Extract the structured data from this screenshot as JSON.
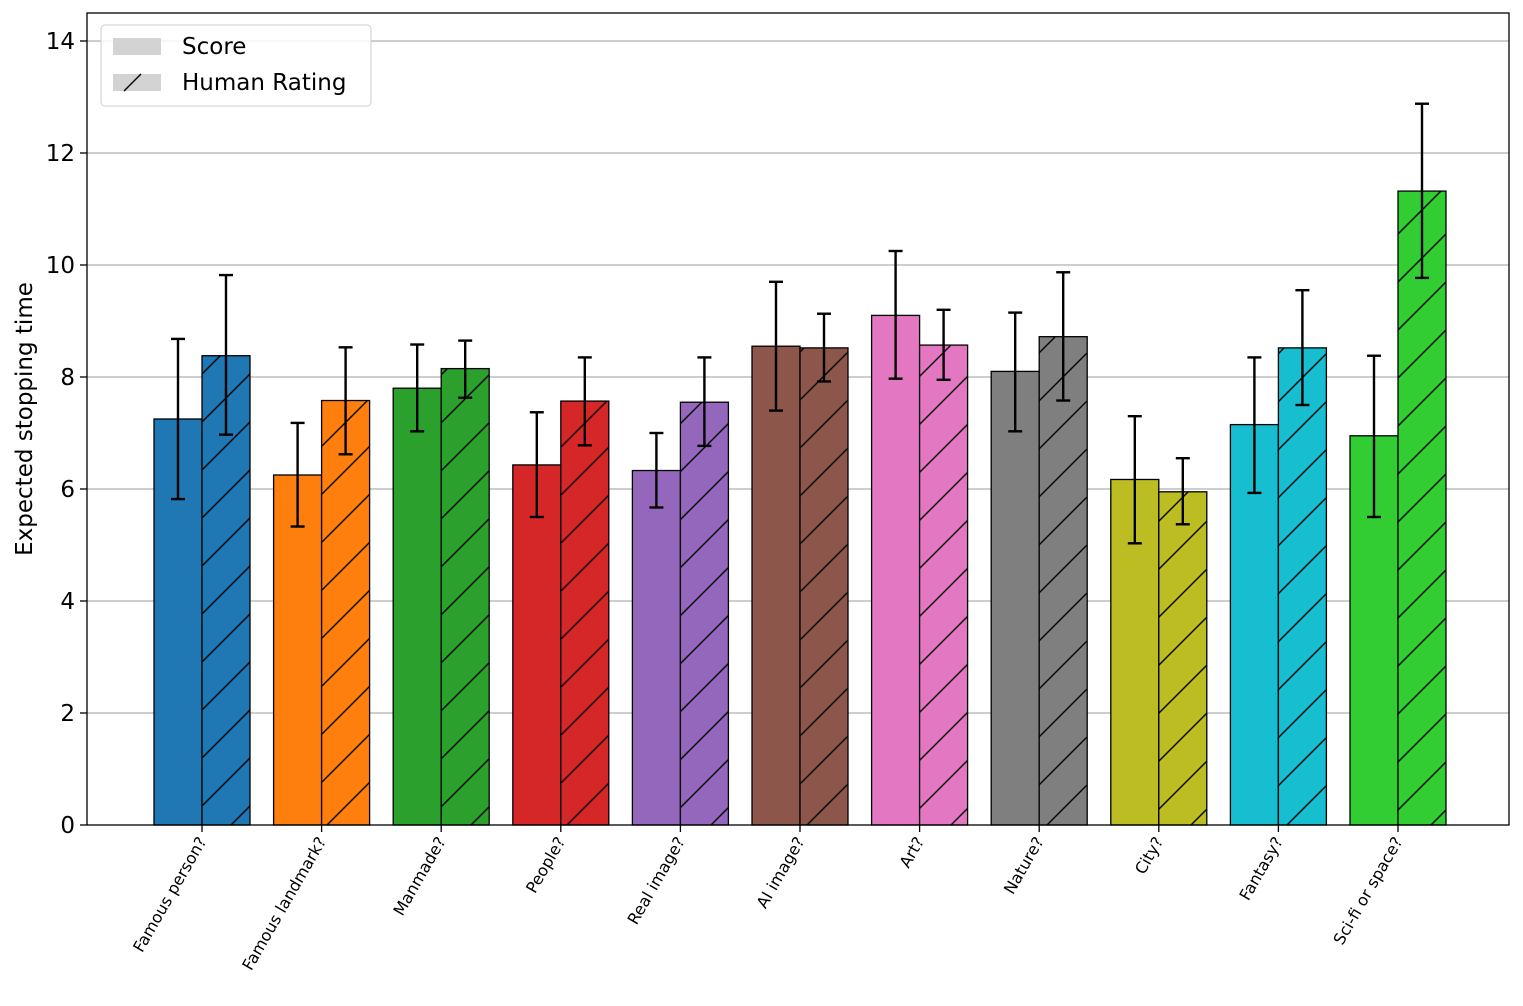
{
  "chart_data": {
    "type": "bar",
    "title": "",
    "xlabel": "",
    "ylabel": "Expected stopping time",
    "ylim": [
      0,
      14.5
    ],
    "yticks": [
      0,
      2,
      4,
      6,
      8,
      10,
      12,
      14
    ],
    "grid": "horizontal",
    "legend_position": "top-left",
    "categories": [
      "Famous person?",
      "Famous landmark?",
      "Manmade?",
      "People?",
      "Real image?",
      "AI image?",
      "Art?",
      "Nature?",
      "City?",
      "Fantasy?",
      "Sci-fi or space?"
    ],
    "category_colors": [
      "#1f77b4",
      "#ff7f0e",
      "#2ca02c",
      "#d62728",
      "#9467bd",
      "#8c564b",
      "#e377c2",
      "#7f7f7f",
      "#bcbd22",
      "#17becf",
      "#32cd32"
    ],
    "series": [
      {
        "name": "Score",
        "hatch": "none",
        "values": [
          7.25,
          6.25,
          7.8,
          6.43,
          6.33,
          8.55,
          9.1,
          8.1,
          6.17,
          7.15,
          6.95
        ],
        "err_low": [
          5.82,
          5.33,
          7.03,
          5.5,
          5.67,
          7.4,
          7.97,
          7.03,
          5.03,
          5.93,
          5.5
        ],
        "err_high": [
          8.68,
          7.18,
          8.58,
          7.37,
          7.0,
          9.7,
          10.25,
          9.15,
          7.3,
          8.35,
          8.38
        ]
      },
      {
        "name": "Human Rating",
        "hatch": "diagonal",
        "values": [
          8.38,
          7.58,
          8.15,
          7.57,
          7.55,
          8.52,
          8.57,
          8.72,
          5.95,
          8.52,
          11.32
        ],
        "err_low": [
          6.97,
          6.62,
          7.63,
          6.78,
          6.77,
          7.92,
          7.95,
          7.58,
          5.37,
          7.5,
          9.77
        ],
        "err_high": [
          9.82,
          8.53,
          8.65,
          8.35,
          8.35,
          9.13,
          9.2,
          9.87,
          6.55,
          9.55,
          12.88
        ]
      }
    ]
  }
}
